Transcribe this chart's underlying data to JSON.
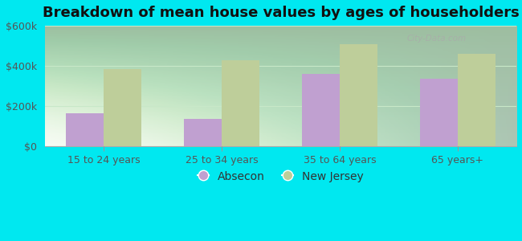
{
  "title": "Breakdown of mean house values by ages of householders",
  "categories": [
    "15 to 24 years",
    "25 to 34 years",
    "35 to 64 years",
    "65 years+"
  ],
  "absecon_values": [
    165000,
    135000,
    360000,
    335000
  ],
  "nj_values": [
    385000,
    430000,
    510000,
    460000
  ],
  "absecon_color": "#c0a0d0",
  "nj_color": "#bece9a",
  "background_color": "#00e8f0",
  "ylim": [
    0,
    600000
  ],
  "yticks": [
    0,
    200000,
    400000,
    600000
  ],
  "ytick_labels": [
    "$0",
    "$200k",
    "$400k",
    "$600k"
  ],
  "title_fontsize": 13,
  "legend_labels": [
    "Absecon",
    "New Jersey"
  ],
  "bar_width": 0.32,
  "grid_color": "#c8e8c8",
  "watermark": "City-Data.com"
}
